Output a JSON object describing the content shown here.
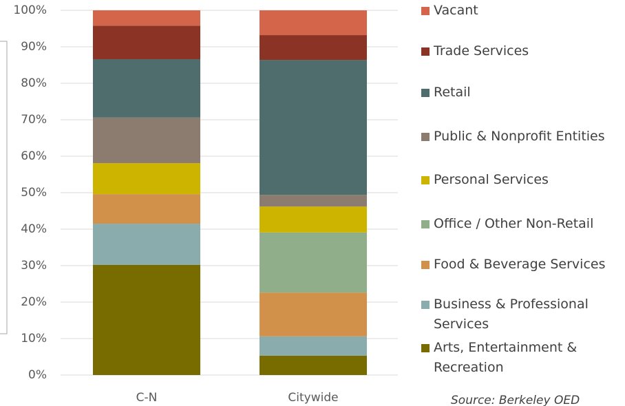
{
  "chart_data": {
    "type": "stacked-bar",
    "categories": [
      "C-N",
      "Citywide"
    ],
    "series": [
      {
        "name": "Arts, Entertainment & Recreation",
        "color": "#786c00",
        "values": [
          30.2,
          5.3
        ]
      },
      {
        "name": "Business & Professional Services",
        "color": "#8aacac",
        "values": [
          11.3,
          5.3
        ]
      },
      {
        "name": "Food & Beverage Services",
        "color": "#d1914a",
        "values": [
          8.1,
          12.0
        ]
      },
      {
        "name": "Office / Other Non-Retail",
        "color": "#90ae89",
        "values": [
          0,
          16.5
        ]
      },
      {
        "name": "Personal Services",
        "color": "#cdb400",
        "values": [
          8.5,
          7.1
        ]
      },
      {
        "name": "Public & Nonprofit Entities",
        "color": "#8b7c6f",
        "values": [
          12.5,
          3.2
        ]
      },
      {
        "name": "Retail",
        "color": "#4f6d6c",
        "values": [
          16.0,
          37.0
        ]
      },
      {
        "name": "Trade Services",
        "color": "#8b3426",
        "values": [
          9.2,
          6.8
        ]
      },
      {
        "name": "Vacant",
        "color": "#d4654b",
        "values": [
          4.2,
          6.8
        ]
      }
    ],
    "ylim": [
      0,
      100
    ],
    "yticks": [
      {
        "value": 0,
        "label": "0%"
      },
      {
        "value": 10,
        "label": "10%"
      },
      {
        "value": 20,
        "label": "20%"
      },
      {
        "value": 30,
        "label": "30%"
      },
      {
        "value": 40,
        "label": "40%"
      },
      {
        "value": 50,
        "label": "50%"
      },
      {
        "value": 60,
        "label": "60%"
      },
      {
        "value": 70,
        "label": "70%"
      },
      {
        "value": 80,
        "label": "80%"
      },
      {
        "value": 90,
        "label": "90%"
      },
      {
        "value": 100,
        "label": "100%"
      }
    ],
    "grid": true,
    "legend": "right",
    "note": "Source: Berkeley OED"
  }
}
